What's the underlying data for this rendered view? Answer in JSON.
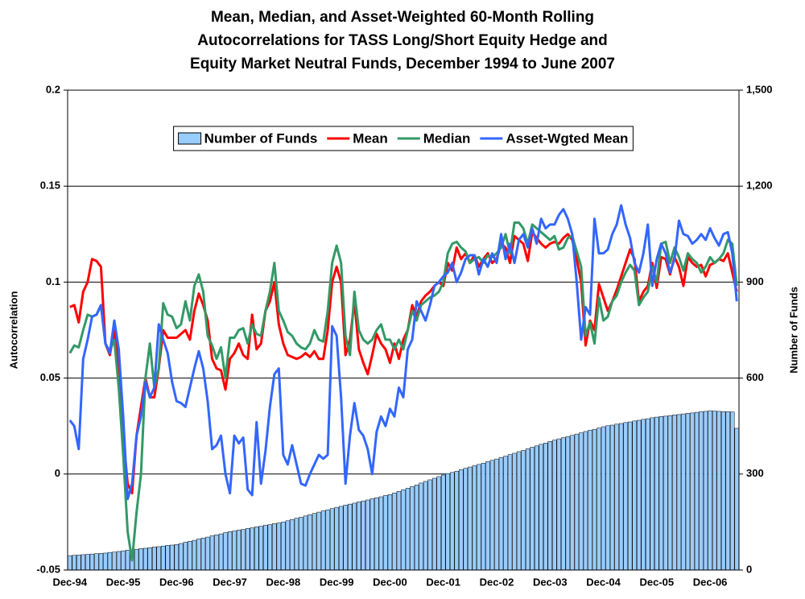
{
  "chart_data": {
    "type": "bar",
    "title": [
      "Mean, Median, and Asset-Weighted 60-Month Rolling",
      "Autocorrelations for TASS Long/Short Equity Hedge and",
      "Equity Market Neutral Funds, December 1994 to June 2007"
    ],
    "y_label": "Autocorrelation",
    "y2_label": "Number of Funds",
    "ylim": [
      -0.05,
      0.2
    ],
    "yticks": [
      -0.05,
      0,
      0.05,
      0.1,
      0.15,
      0.2
    ],
    "y2lim": [
      0,
      1500
    ],
    "y2ticks": [
      0,
      300,
      600,
      900,
      {
        "value": 1200,
        "label": "1,200"
      },
      {
        "value": 1500,
        "label": "1,500"
      }
    ],
    "grid": true,
    "legend": "top",
    "categories": [
      "Dec-94",
      null,
      null,
      null,
      null,
      null,
      null,
      null,
      null,
      null,
      null,
      null,
      "Dec-95",
      null,
      null,
      null,
      null,
      null,
      null,
      null,
      null,
      null,
      null,
      null,
      "Dec-96",
      null,
      null,
      null,
      null,
      null,
      null,
      null,
      null,
      null,
      null,
      null,
      "Dec-97",
      null,
      null,
      null,
      null,
      null,
      null,
      null,
      null,
      null,
      null,
      null,
      "Dec-98",
      null,
      null,
      null,
      null,
      null,
      null,
      null,
      null,
      null,
      null,
      null,
      "Dec-99",
      null,
      null,
      null,
      null,
      null,
      null,
      null,
      null,
      null,
      null,
      null,
      "Dec-00",
      null,
      null,
      null,
      null,
      null,
      null,
      null,
      null,
      null,
      null,
      null,
      "Dec-01",
      null,
      null,
      null,
      null,
      null,
      null,
      null,
      null,
      null,
      null,
      null,
      "Dec-02",
      null,
      null,
      null,
      null,
      null,
      null,
      null,
      null,
      null,
      null,
      null,
      "Dec-03",
      null,
      null,
      null,
      null,
      null,
      null,
      null,
      null,
      null,
      null,
      null,
      "Dec-04",
      null,
      null,
      null,
      null,
      null,
      null,
      null,
      null,
      null,
      null,
      null,
      "Dec-05",
      null,
      null,
      null,
      null,
      null,
      null,
      null,
      null,
      null,
      null,
      null,
      "Dec-06",
      null,
      null,
      null,
      null,
      null,
      null
    ],
    "series": [
      {
        "name": "Number of Funds",
        "type": "bar",
        "axis": "y2",
        "color": "#99ccff",
        "values": [
          45,
          46,
          47,
          48,
          49,
          50,
          51,
          52,
          53,
          55,
          56,
          58,
          60,
          62,
          63,
          65,
          67,
          68,
          70,
          72,
          73,
          75,
          77,
          78,
          80,
          83,
          87,
          90,
          93,
          97,
          100,
          103,
          107,
          110,
          113,
          117,
          120,
          122,
          125,
          127,
          130,
          132,
          135,
          137,
          140,
          142,
          145,
          147,
          150,
          154,
          158,
          162,
          165,
          169,
          173,
          177,
          181,
          185,
          188,
          192,
          196,
          199,
          203,
          206,
          209,
          213,
          216,
          219,
          223,
          226,
          229,
          233,
          236,
          241,
          246,
          251,
          256,
          261,
          266,
          272,
          277,
          282,
          287,
          292,
          297,
          301,
          305,
          309,
          314,
          318,
          322,
          326,
          330,
          334,
          339,
          343,
          347,
          352,
          356,
          361,
          365,
          370,
          374,
          379,
          384,
          388,
          393,
          397,
          402,
          406,
          410,
          414,
          417,
          421,
          425,
          429,
          433,
          437,
          440,
          444,
          448,
          451,
          453,
          456,
          458,
          461,
          463,
          466,
          468,
          471,
          473,
          476,
          478,
          480,
          481,
          483,
          485,
          486,
          488,
          490,
          491,
          493,
          495,
          496,
          498,
          497,
          496,
          495,
          495,
          494,
          443
        ]
      },
      {
        "name": "Mean",
        "type": "line",
        "color": "#ff0000",
        "values": [
          0.087,
          0.088,
          0.079,
          0.095,
          0.1,
          0.112,
          0.111,
          0.108,
          0.068,
          0.062,
          0.075,
          0.055,
          0.02,
          -0.005,
          -0.01,
          0.02,
          0.035,
          0.05,
          0.04,
          0.04,
          0.055,
          0.075,
          0.071,
          0.071,
          0.071,
          0.073,
          0.075,
          0.07,
          0.085,
          0.094,
          0.088,
          0.08,
          0.06,
          0.055,
          0.054,
          0.044,
          0.06,
          0.063,
          0.068,
          0.062,
          0.06,
          0.083,
          0.065,
          0.068,
          0.085,
          0.09,
          0.1,
          0.078,
          0.068,
          0.062,
          0.061,
          0.06,
          0.061,
          0.063,
          0.061,
          0.064,
          0.06,
          0.06,
          0.075,
          0.1,
          0.108,
          0.1,
          0.062,
          0.07,
          0.09,
          0.065,
          0.058,
          0.052,
          0.062,
          0.073,
          0.068,
          0.065,
          0.058,
          0.068,
          0.06,
          0.07,
          0.075,
          0.088,
          0.082,
          0.09,
          0.093,
          0.095,
          0.098,
          0.1,
          0.098,
          0.11,
          0.106,
          0.118,
          0.112,
          0.115,
          0.11,
          0.114,
          0.108,
          0.112,
          0.115,
          0.11,
          0.112,
          0.12,
          0.118,
          0.11,
          0.124,
          0.122,
          0.12,
          0.111,
          0.126,
          0.123,
          0.12,
          0.118,
          0.12,
          0.121,
          0.12,
          0.123,
          0.125,
          0.122,
          0.112,
          0.1,
          0.067,
          0.08,
          0.075,
          0.099,
          0.092,
          0.085,
          0.09,
          0.096,
          0.103,
          0.11,
          0.117,
          0.112,
          0.09,
          0.095,
          0.098,
          0.11,
          0.097,
          0.113,
          0.112,
          0.104,
          0.113,
          0.108,
          0.098,
          0.113,
          0.11,
          0.108,
          0.109,
          0.103,
          0.109,
          0.11,
          0.112,
          0.111,
          0.115,
          0.105,
          0.095
        ]
      },
      {
        "name": "Median",
        "type": "line",
        "color": "#339966",
        "values": [
          0.063,
          0.067,
          0.066,
          0.075,
          0.083,
          0.082,
          0.083,
          0.088,
          0.068,
          0.064,
          0.07,
          0.045,
          0.01,
          -0.03,
          -0.045,
          -0.02,
          0.0,
          0.05,
          0.068,
          0.045,
          0.055,
          0.089,
          0.083,
          0.082,
          0.076,
          0.078,
          0.09,
          0.08,
          0.098,
          0.104,
          0.095,
          0.072,
          0.067,
          0.06,
          0.066,
          0.05,
          0.071,
          0.071,
          0.075,
          0.076,
          0.068,
          0.078,
          0.073,
          0.072,
          0.085,
          0.095,
          0.11,
          0.085,
          0.08,
          0.074,
          0.072,
          0.068,
          0.066,
          0.065,
          0.068,
          0.075,
          0.07,
          0.069,
          0.085,
          0.11,
          0.119,
          0.11,
          0.072,
          0.062,
          0.095,
          0.075,
          0.07,
          0.068,
          0.07,
          0.075,
          0.078,
          0.07,
          0.07,
          0.065,
          0.07,
          0.065,
          0.075,
          0.085,
          0.08,
          0.088,
          0.09,
          0.092,
          0.093,
          0.095,
          0.1,
          0.115,
          0.12,
          0.121,
          0.118,
          0.116,
          0.11,
          0.112,
          0.113,
          0.11,
          0.114,
          0.113,
          0.115,
          0.118,
          0.125,
          0.115,
          0.131,
          0.131,
          0.128,
          0.12,
          0.13,
          0.128,
          0.126,
          0.124,
          0.122,
          0.124,
          0.117,
          0.118,
          0.123,
          0.124,
          0.116,
          0.108,
          0.072,
          0.079,
          0.068,
          0.092,
          0.08,
          0.082,
          0.09,
          0.093,
          0.1,
          0.105,
          0.109,
          0.106,
          0.088,
          0.092,
          0.095,
          0.108,
          0.1,
          0.12,
          0.121,
          0.11,
          0.118,
          0.113,
          0.106,
          0.115,
          0.112,
          0.11,
          0.105,
          0.108,
          0.113,
          0.11,
          0.112,
          0.115,
          0.122,
          0.12,
          0.098
        ]
      },
      {
        "name": "Asset-Wgted Mean",
        "type": "line",
        "color": "#3366ff",
        "values": [
          0.028,
          0.025,
          0.013,
          0.06,
          0.07,
          0.082,
          0.083,
          0.088,
          0.068,
          0.063,
          0.08,
          0.065,
          0.03,
          -0.013,
          -0.005,
          0.02,
          0.03,
          0.048,
          0.04,
          0.045,
          0.078,
          0.07,
          0.063,
          0.048,
          0.038,
          0.037,
          0.035,
          0.045,
          0.055,
          0.064,
          0.055,
          0.038,
          0.013,
          0.015,
          0.02,
          0.0,
          -0.01,
          0.02,
          0.016,
          0.019,
          -0.008,
          -0.011,
          0.027,
          -0.005,
          0.012,
          0.035,
          0.052,
          0.055,
          0.01,
          0.005,
          0.015,
          0.005,
          -0.005,
          -0.006,
          0.0,
          0.005,
          0.01,
          0.008,
          0.01,
          0.077,
          0.072,
          0.04,
          -0.005,
          0.02,
          0.037,
          0.023,
          0.02,
          0.013,
          0.0,
          0.022,
          0.03,
          0.025,
          0.034,
          0.03,
          0.045,
          0.04,
          0.065,
          0.07,
          0.09,
          0.085,
          0.08,
          0.088,
          0.098,
          0.1,
          0.103,
          0.105,
          0.11,
          0.1,
          0.105,
          0.112,
          0.114,
          0.114,
          0.104,
          0.112,
          0.108,
          0.115,
          0.11,
          0.125,
          0.112,
          0.12,
          0.11,
          0.122,
          0.125,
          0.118,
          0.128,
          0.12,
          0.133,
          0.128,
          0.13,
          0.13,
          0.135,
          0.138,
          0.133,
          0.125,
          0.1,
          0.07,
          0.087,
          0.083,
          0.133,
          0.115,
          0.115,
          0.117,
          0.125,
          0.13,
          0.14,
          0.13,
          0.123,
          0.11,
          0.105,
          0.115,
          0.13,
          0.098,
          0.112,
          0.12,
          0.115,
          0.105,
          0.112,
          0.132,
          0.125,
          0.124,
          0.12,
          0.122,
          0.125,
          0.122,
          0.128,
          0.123,
          0.119,
          0.125,
          0.126,
          0.115,
          0.09
        ]
      }
    ]
  }
}
